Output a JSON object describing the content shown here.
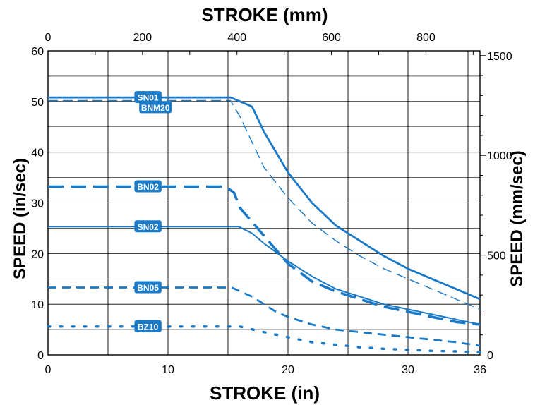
{
  "chart_data": {
    "type": "line",
    "x_bottom": {
      "label": "STROKE (in)",
      "range": [
        0,
        36
      ],
      "ticks": [
        0,
        10,
        20,
        30
      ],
      "end_label": "36"
    },
    "x_top": {
      "label": "STROKE (mm)",
      "range": [
        0,
        914.4
      ],
      "ticks": [
        0,
        200,
        400,
        600,
        800
      ]
    },
    "y_left": {
      "label": "SPEED (in/sec)",
      "range": [
        0,
        60
      ],
      "ticks": [
        0,
        10,
        20,
        30,
        40,
        50,
        60
      ]
    },
    "y_right": {
      "label": "SPEED (mm/sec)",
      "range": [
        0,
        1524
      ],
      "ticks": [
        0,
        500,
        1000,
        1500
      ]
    },
    "grid": true,
    "series": [
      {
        "name": "SN01",
        "style": "solid-thick",
        "label_x": 7.2,
        "points": [
          [
            0,
            50.8
          ],
          [
            15.2,
            50.8
          ],
          [
            16,
            50
          ],
          [
            17,
            49
          ],
          [
            18,
            44
          ],
          [
            20,
            36
          ],
          [
            22,
            30
          ],
          [
            24,
            25.5
          ],
          [
            26,
            22.5
          ],
          [
            28,
            19.5
          ],
          [
            30,
            17
          ],
          [
            32,
            15
          ],
          [
            34,
            13
          ],
          [
            36,
            11
          ]
        ]
      },
      {
        "name": "BNM20",
        "style": "dashed-thin",
        "label_x": 7.6,
        "points": [
          [
            0,
            50.2
          ],
          [
            15.2,
            50.2
          ],
          [
            16,
            47
          ],
          [
            18,
            37
          ],
          [
            20,
            31
          ],
          [
            22,
            26
          ],
          [
            24,
            22.5
          ],
          [
            26,
            19.5
          ],
          [
            28,
            17
          ],
          [
            30,
            15
          ],
          [
            32,
            13
          ],
          [
            34,
            11
          ],
          [
            36,
            9
          ]
        ]
      },
      {
        "name": "BN02",
        "style": "dashed-thick",
        "label_x": 7.2,
        "points": [
          [
            0,
            33.2
          ],
          [
            14.8,
            33.2
          ],
          [
            15.5,
            32
          ],
          [
            16,
            29
          ],
          [
            18,
            23.5
          ],
          [
            20,
            18
          ],
          [
            22,
            14.5
          ],
          [
            24,
            12.5
          ],
          [
            26,
            11
          ],
          [
            28,
            9.5
          ],
          [
            30,
            8.5
          ],
          [
            32,
            7.5
          ],
          [
            34,
            6.5
          ],
          [
            36,
            6
          ]
        ]
      },
      {
        "name": "SN02",
        "style": "solid-thin",
        "label_x": 7.2,
        "points": [
          [
            0,
            25.3
          ],
          [
            15.9,
            25.3
          ],
          [
            17,
            24
          ],
          [
            18,
            22
          ],
          [
            20,
            18.5
          ],
          [
            22,
            15.5
          ],
          [
            24,
            13
          ],
          [
            26,
            11.5
          ],
          [
            28,
            10
          ],
          [
            30,
            9
          ],
          [
            32,
            8
          ],
          [
            34,
            7
          ],
          [
            36,
            6
          ]
        ]
      },
      {
        "name": "BN05",
        "style": "dashed-medium",
        "label_x": 7.2,
        "points": [
          [
            0,
            13.3
          ],
          [
            15.3,
            13.3
          ],
          [
            17,
            11.5
          ],
          [
            19,
            8.5
          ],
          [
            20,
            7.5
          ],
          [
            22,
            6
          ],
          [
            24,
            5
          ],
          [
            26,
            4.5
          ],
          [
            28,
            4
          ],
          [
            30,
            3.5
          ],
          [
            32,
            3
          ],
          [
            34,
            2.5
          ],
          [
            36,
            1.8
          ]
        ]
      },
      {
        "name": "BZ10",
        "style": "dotted",
        "label_x": 7.2,
        "points": [
          [
            0,
            5.6
          ],
          [
            16,
            5.6
          ],
          [
            18,
            4.5
          ],
          [
            20,
            3.5
          ],
          [
            22,
            2.5
          ],
          [
            24,
            2
          ],
          [
            26,
            1.5
          ],
          [
            28,
            1.2
          ],
          [
            30,
            1
          ],
          [
            32,
            0.8
          ],
          [
            34,
            0.7
          ],
          [
            36,
            0.5
          ]
        ]
      }
    ]
  },
  "colors": {
    "series": "#1a7ac8",
    "grid": "#000000",
    "label_bg": "#1a7ac8",
    "label_text": "#ffffff"
  }
}
